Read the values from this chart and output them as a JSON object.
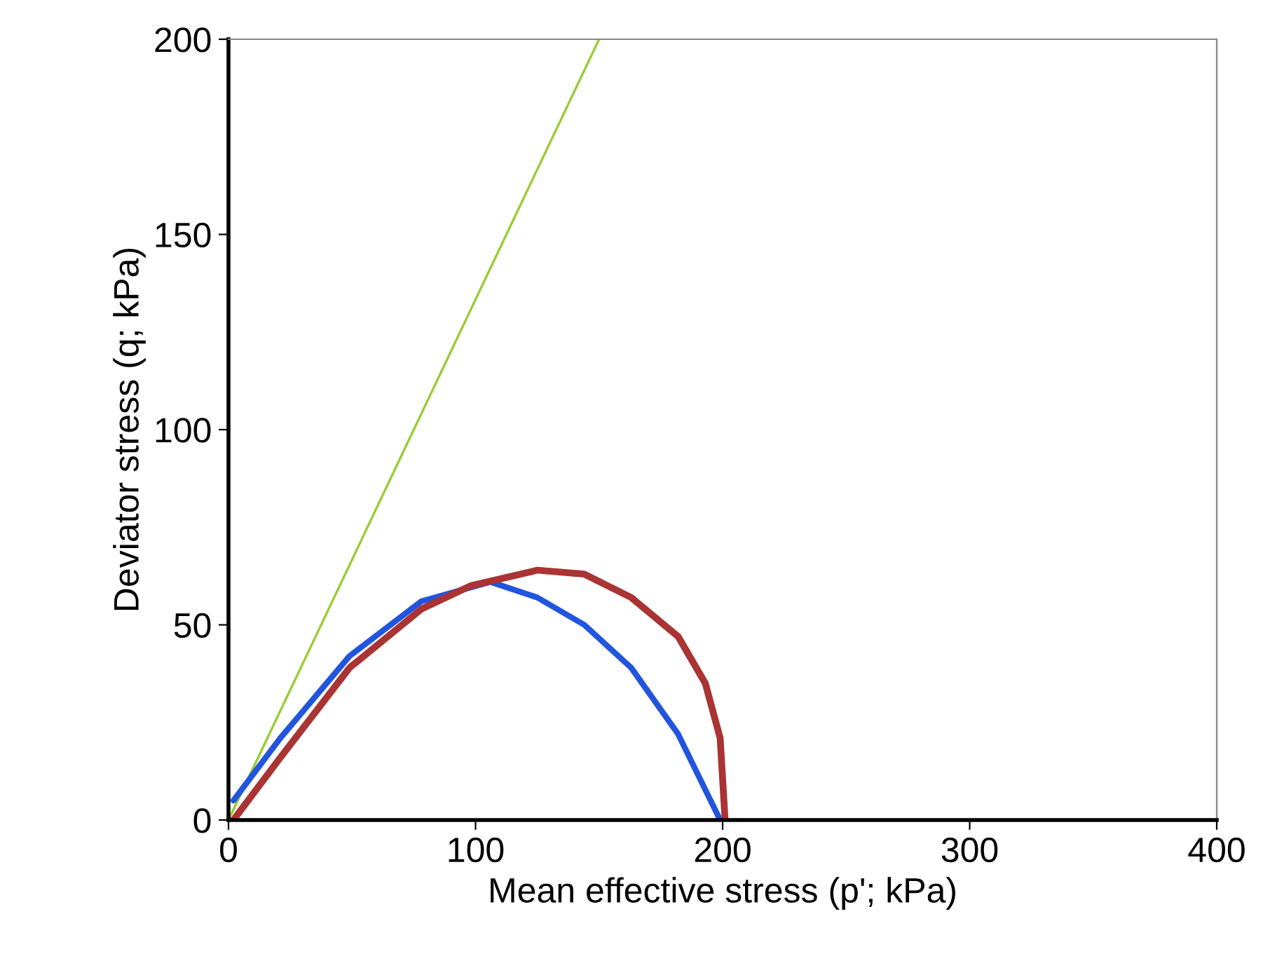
{
  "chart_data": {
    "type": "line",
    "xlabel": "Mean effective stress (p'; kPa)",
    "ylabel": "Deviator stress (q; kPa)",
    "xlim": [
      0,
      400
    ],
    "ylim": [
      0,
      200
    ],
    "xticks": [
      0,
      100,
      200,
      300,
      400
    ],
    "yticks": [
      0,
      50,
      100,
      150,
      200
    ],
    "grid": false,
    "legend": false,
    "marker": "none",
    "line_style": "solid",
    "series": [
      {
        "color": "#99cc33",
        "x": [
          0,
          150
        ],
        "values": [
          0,
          200
        ]
      },
      {
        "color": "#2255dd",
        "x": [
          2,
          21,
          49,
          78,
          106,
          125,
          144,
          163,
          182,
          199
        ],
        "values": [
          5,
          21,
          42,
          56,
          61,
          57,
          50,
          39,
          22,
          0
        ]
      },
      {
        "color": "#aa3333",
        "x": [
          2,
          21,
          49,
          78,
          98,
          125,
          144,
          163,
          182,
          193,
          199,
          201
        ],
        "values": [
          0,
          16,
          39,
          54,
          60,
          64,
          63,
          57,
          47,
          35,
          21,
          0
        ]
      }
    ]
  }
}
